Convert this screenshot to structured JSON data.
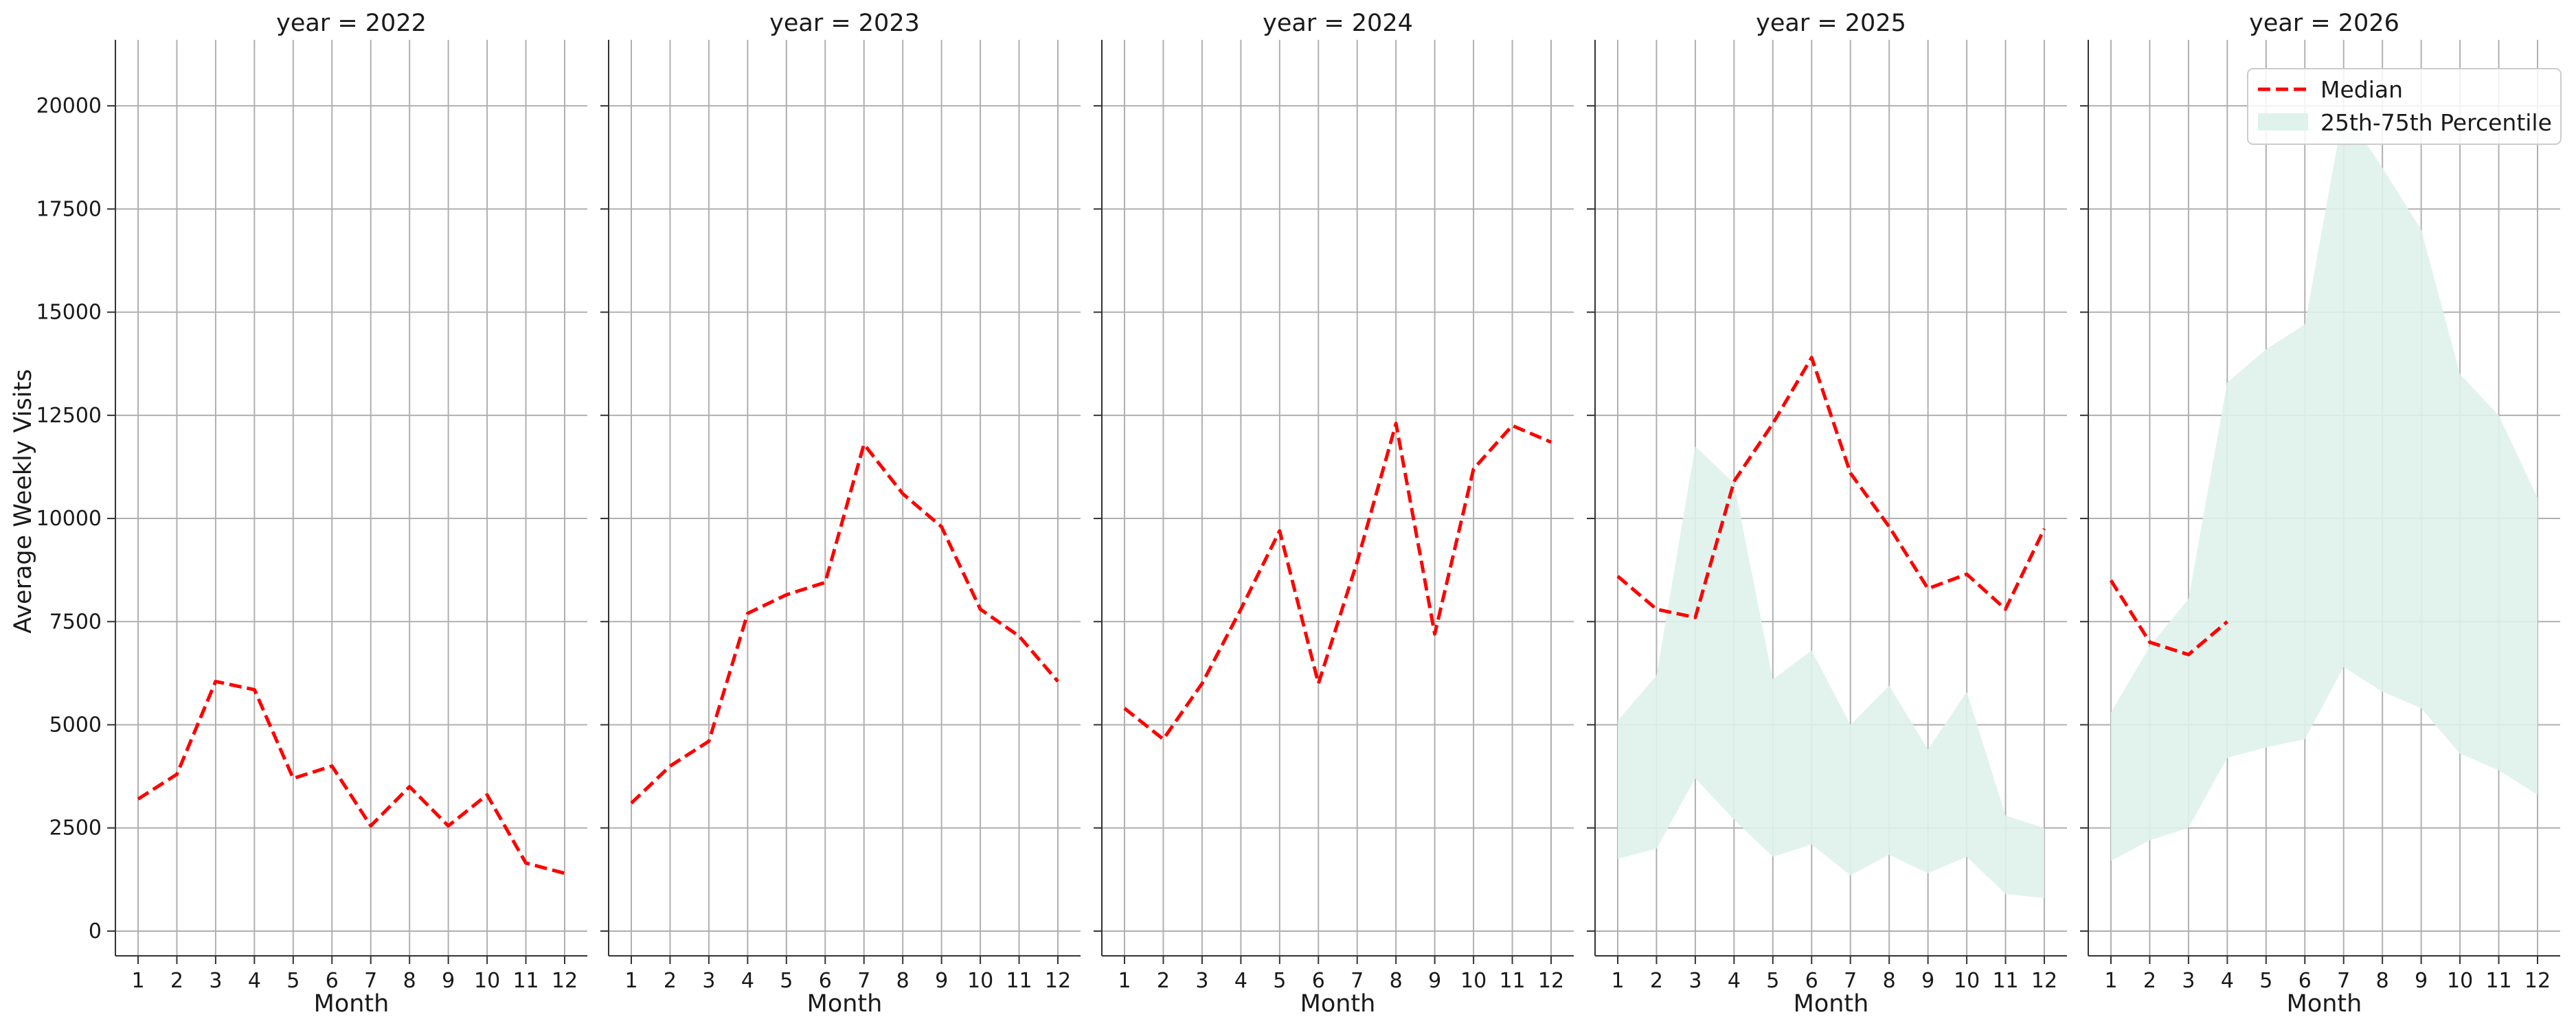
{
  "chart_data": {
    "type": "line",
    "layout": "facet-columns",
    "facet_variable": "year",
    "ylabel": "Average Weekly Visits",
    "xlabel": "Month",
    "x": [
      1,
      2,
      3,
      4,
      5,
      6,
      7,
      8,
      9,
      10,
      11,
      12
    ],
    "x_ticks": [
      "1",
      "2",
      "3",
      "4",
      "5",
      "6",
      "7",
      "8",
      "9",
      "10",
      "11",
      "12"
    ],
    "ylim": [
      -600,
      21600
    ],
    "y_ticks": [
      "0",
      "2500",
      "5000",
      "7500",
      "10000",
      "12500",
      "15000",
      "17500",
      "20000"
    ],
    "grid": true,
    "legend": {
      "placement": "top-right",
      "entries": [
        "Median",
        "25th-75th Percentile"
      ]
    },
    "colors": {
      "median": "#ff0000",
      "band": "#dff2ec",
      "grid": "#b0b0b0",
      "axis": "#333333"
    },
    "panels": [
      {
        "title": "year = 2022",
        "median": [
          3200,
          3800,
          6050,
          5850,
          3700,
          4000,
          2550,
          3500,
          2550,
          3300,
          1650,
          1400
        ],
        "band_low": null,
        "band_high": null
      },
      {
        "title": "year = 2023",
        "median": [
          3100,
          4000,
          4600,
          7700,
          8150,
          8450,
          11800,
          10600,
          9800,
          7800,
          7150,
          6050
        ],
        "band_low": null,
        "band_high": null
      },
      {
        "title": "year = 2024",
        "median": [
          5400,
          4650,
          6000,
          7800,
          9700,
          6000,
          8950,
          12300,
          7200,
          11200,
          12250,
          11850
        ],
        "band_low": null,
        "band_high": null
      },
      {
        "title": "year = 2025",
        "median": [
          8600,
          7800,
          7600,
          10900,
          12300,
          13900,
          11100,
          9800,
          8300,
          8650,
          7800,
          9750
        ],
        "band_low": [
          1750,
          2000,
          3700,
          2700,
          1800,
          2100,
          1350,
          1850,
          1400,
          1800,
          900,
          800
        ],
        "band_high": [
          5100,
          6200,
          11750,
          10850,
          6100,
          6800,
          5000,
          5950,
          4400,
          5800,
          2800,
          2500
        ]
      },
      {
        "title": "year = 2026",
        "median": [
          8500,
          7000,
          6700,
          7500,
          null,
          null,
          null,
          null,
          null,
          null,
          null,
          null
        ],
        "band_low": [
          1700,
          2200,
          2500,
          4200,
          4450,
          4650,
          6400,
          5800,
          5400,
          4300,
          3900,
          3300
        ],
        "band_high": [
          5300,
          6900,
          8050,
          13300,
          14100,
          14700,
          19900,
          18500,
          17000,
          13500,
          12500,
          10500
        ]
      }
    ]
  }
}
